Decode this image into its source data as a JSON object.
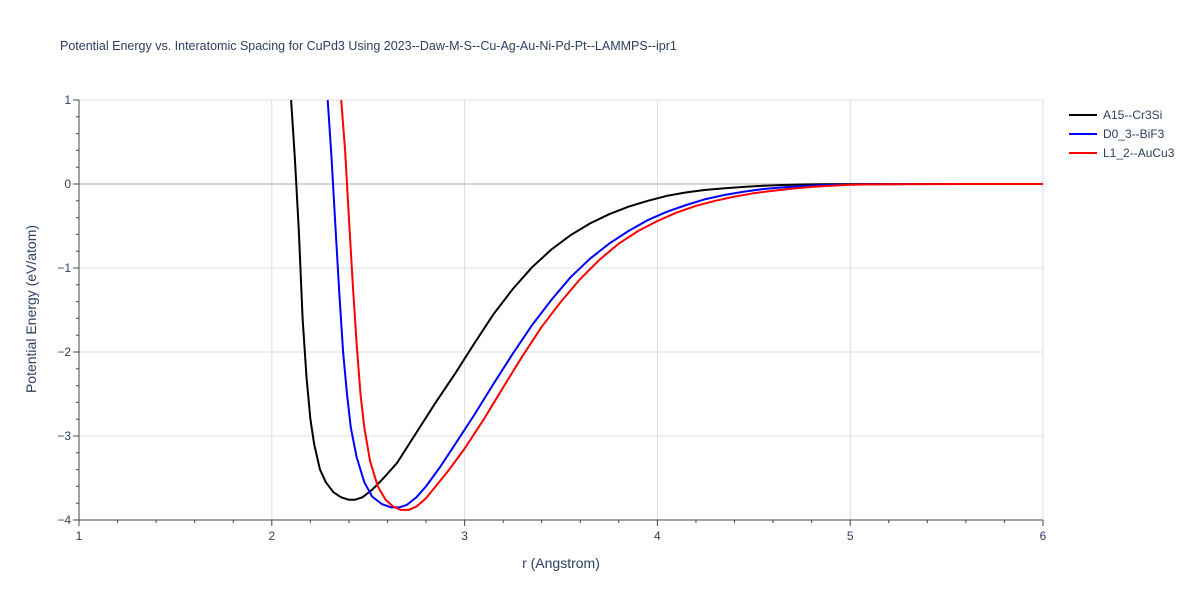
{
  "chart_data": {
    "type": "line",
    "title": "Potential Energy vs. Interatomic Spacing for CuPd3 Using 2023--Daw-M-S--Cu-Ag-Au-Ni-Pd-Pt--LAMMPS--ipr1",
    "xlabel": "r (Angstrom)",
    "ylabel": "Potential Energy (eV/atom)",
    "xlim": [
      1,
      6
    ],
    "ylim": [
      -4,
      1
    ],
    "xticks": [
      1,
      2,
      3,
      4,
      5,
      6
    ],
    "yticks": [
      1,
      0,
      -1,
      -2,
      -3,
      -4
    ],
    "xtick_labels": [
      "1",
      "2",
      "3",
      "4",
      "5",
      "6"
    ],
    "ytick_labels": [
      "1",
      "0",
      "−1",
      "−2",
      "−3",
      "−4"
    ],
    "grid": true,
    "legend_position": "top-right",
    "series": [
      {
        "name": "A15--Cr3Si",
        "color": "#000000",
        "x": [
          2.1,
          2.12,
          2.14,
          2.16,
          2.18,
          2.2,
          2.22,
          2.25,
          2.28,
          2.32,
          2.36,
          2.4,
          2.43,
          2.47,
          2.52,
          2.58,
          2.65,
          2.75,
          2.85,
          2.95,
          3.05,
          3.15,
          3.25,
          3.35,
          3.45,
          3.55,
          3.65,
          3.75,
          3.85,
          3.95,
          4.05,
          4.15,
          4.25,
          4.35,
          4.45,
          4.55,
          4.65,
          4.75,
          4.85,
          5.0,
          5.2,
          5.5,
          6.0
        ],
        "y": [
          1.0,
          0.3,
          -0.55,
          -1.6,
          -2.3,
          -2.8,
          -3.1,
          -3.4,
          -3.55,
          -3.67,
          -3.73,
          -3.76,
          -3.76,
          -3.73,
          -3.64,
          -3.5,
          -3.32,
          -2.96,
          -2.6,
          -2.26,
          -1.9,
          -1.55,
          -1.25,
          -0.99,
          -0.78,
          -0.61,
          -0.47,
          -0.36,
          -0.27,
          -0.2,
          -0.14,
          -0.1,
          -0.07,
          -0.05,
          -0.035,
          -0.02,
          -0.012,
          -0.006,
          -0.003,
          -0.001,
          0,
          0,
          0
        ]
      },
      {
        "name": "D0_3--BiF3",
        "color": "#0000ff",
        "x": [
          2.29,
          2.31,
          2.33,
          2.35,
          2.37,
          2.39,
          2.41,
          2.44,
          2.48,
          2.52,
          2.57,
          2.62,
          2.66,
          2.7,
          2.75,
          2.8,
          2.87,
          2.95,
          3.05,
          3.15,
          3.25,
          3.35,
          3.45,
          3.55,
          3.65,
          3.75,
          3.85,
          3.95,
          4.05,
          4.15,
          4.25,
          4.35,
          4.45,
          4.55,
          4.65,
          4.75,
          4.85,
          4.95,
          5.1,
          5.3,
          5.6,
          6.0
        ],
        "y": [
          1.0,
          0.3,
          -0.5,
          -1.3,
          -2.0,
          -2.5,
          -2.9,
          -3.25,
          -3.55,
          -3.72,
          -3.81,
          -3.85,
          -3.85,
          -3.82,
          -3.73,
          -3.6,
          -3.38,
          -3.1,
          -2.75,
          -2.38,
          -2.02,
          -1.68,
          -1.38,
          -1.11,
          -0.89,
          -0.71,
          -0.56,
          -0.43,
          -0.33,
          -0.25,
          -0.18,
          -0.13,
          -0.09,
          -0.06,
          -0.04,
          -0.025,
          -0.015,
          -0.008,
          -0.003,
          -0.001,
          0,
          0
        ]
      },
      {
        "name": "L1_2--AuCu3",
        "color": "#ff0000",
        "x": [
          2.36,
          2.38,
          2.4,
          2.42,
          2.44,
          2.46,
          2.48,
          2.51,
          2.55,
          2.59,
          2.63,
          2.67,
          2.71,
          2.75,
          2.8,
          2.85,
          2.92,
          3.0,
          3.1,
          3.2,
          3.3,
          3.4,
          3.5,
          3.6,
          3.7,
          3.8,
          3.9,
          4.0,
          4.1,
          4.2,
          4.3,
          4.4,
          4.5,
          4.6,
          4.7,
          4.8,
          4.9,
          5.0,
          5.1,
          5.3,
          5.6,
          6.0
        ],
        "y": [
          1.0,
          0.4,
          -0.4,
          -1.2,
          -1.9,
          -2.5,
          -2.9,
          -3.3,
          -3.6,
          -3.76,
          -3.84,
          -3.88,
          -3.88,
          -3.84,
          -3.74,
          -3.6,
          -3.4,
          -3.15,
          -2.8,
          -2.42,
          -2.05,
          -1.7,
          -1.4,
          -1.13,
          -0.9,
          -0.71,
          -0.56,
          -0.44,
          -0.34,
          -0.26,
          -0.2,
          -0.15,
          -0.11,
          -0.08,
          -0.055,
          -0.035,
          -0.02,
          -0.01,
          -0.005,
          -0.001,
          0,
          0
        ]
      }
    ]
  }
}
